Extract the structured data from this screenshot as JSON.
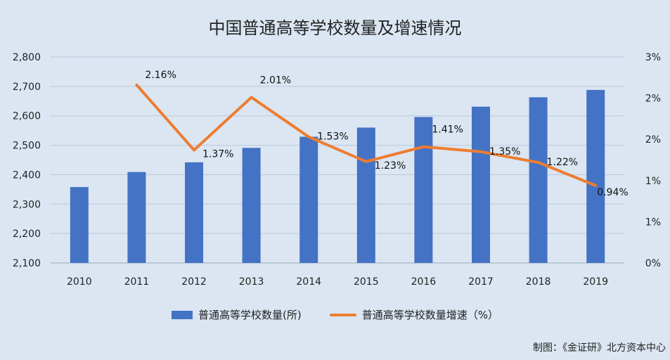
{
  "colors": {
    "background": "#dbe6f2",
    "bar": "#4472c4",
    "line": "#ed7d31",
    "grid": "#b8c7d9"
  },
  "legend": {
    "bar_label": "普通高等学校数量(所)",
    "line_label": "普通高等学校数量增速（%）"
  },
  "credit": "制图：《金证研》北方资本中心",
  "chart_data": {
    "type": "bar",
    "title": "中国普通高等学校数量及增速情况",
    "categories": [
      "2010",
      "2011",
      "2012",
      "2013",
      "2014",
      "2015",
      "2016",
      "2017",
      "2018",
      "2019"
    ],
    "series": [
      {
        "name": "普通高等学校数量(所)",
        "type": "bar",
        "axis": "left",
        "values": [
          2358,
          2409,
          2442,
          2491,
          2529,
          2560,
          2596,
          2631,
          2663,
          2688
        ]
      },
      {
        "name": "普通高等学校数量增速（%）",
        "type": "line",
        "axis": "right",
        "values": [
          null,
          2.16,
          1.37,
          2.01,
          1.53,
          1.23,
          1.41,
          1.35,
          1.22,
          0.94
        ],
        "labels": [
          "",
          "2.16%",
          "1.37%",
          "2.01%",
          "1.53%",
          "1.23%",
          "1.41%",
          "1.35%",
          "1.22%",
          "0.94%"
        ]
      }
    ],
    "y_left": {
      "range": [
        2100,
        2800
      ],
      "ticks": [
        2100,
        2200,
        2300,
        2400,
        2500,
        2600,
        2700,
        2800
      ],
      "tick_labels": [
        "2,100",
        "2,200",
        "2,300",
        "2,400",
        "2,500",
        "2,600",
        "2,700",
        "2,800"
      ]
    },
    "y_right": {
      "range": [
        0,
        2.5
      ],
      "ticks": [
        0,
        0.5,
        1.0,
        1.5,
        2.0,
        2.5
      ],
      "tick_labels": [
        "0%",
        "1%",
        "1%",
        "2%",
        "2%",
        "3%"
      ]
    },
    "grid": true,
    "legend_position": "bottom"
  }
}
